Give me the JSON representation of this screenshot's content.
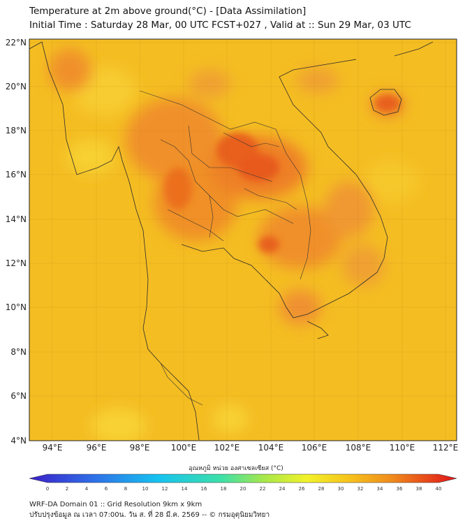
{
  "header": {
    "title_line1": "Temperature at 2m above ground(°C) - [Data Assimilation]",
    "title_line2": "Initial Time : Saturday 28 Mar, 00 UTC FCST+027 , Valid at :: Sun 29 Mar, 03 UTC"
  },
  "map": {
    "lat_labels": [
      "22°N",
      "20°N",
      "18°N",
      "16°N",
      "14°N",
      "12°N",
      "10°N",
      "8°N",
      "6°N",
      "4°N"
    ],
    "lon_labels": [
      "94°E",
      "96°E",
      "98°E",
      "100°E",
      "102°E",
      "104°E",
      "106°E",
      "108°E",
      "110°E",
      "112°E"
    ],
    "background_color": "#f5b81e",
    "hot_color": "#e8501a",
    "border_color": "#333333"
  },
  "colorbar": {
    "label": "อุณหภูมิ หน่วย องศาเซลเซียส (°C)",
    "ticks": [
      "0",
      "2",
      "4",
      "6",
      "8",
      "10",
      "12",
      "14",
      "16",
      "18",
      "20",
      "22",
      "24",
      "26",
      "28",
      "30",
      "32",
      "34",
      "36",
      "38",
      "40"
    ]
  },
  "footer": {
    "line1": "WRF-DA Domain 01 :: Grid Resolution 9km x 9km",
    "line2": "ปรับปรุงข้อมูล ณ เวลา 07:00น. วัน ส. ที่ 28 มี.ค. 2569 -- © กรมอุตุนิยมวิทยา"
  }
}
